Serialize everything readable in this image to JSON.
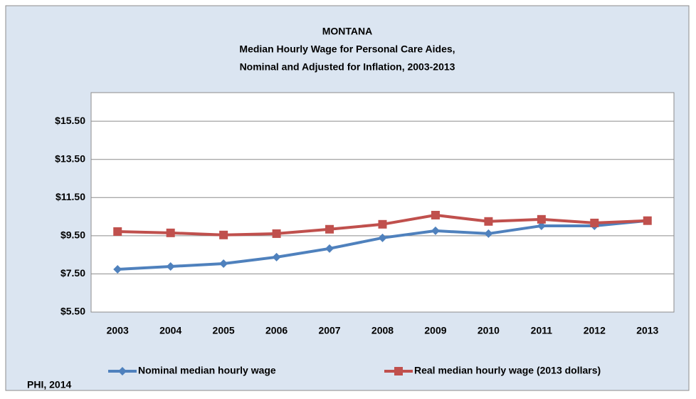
{
  "chart_data": {
    "type": "line",
    "title": [
      "MONTANA",
      "Median Hourly Wage for Personal Care Aides,",
      "Nominal and Adjusted for Inflation, 2003-2013"
    ],
    "source": "PHI, 2014",
    "categories": [
      "2003",
      "2004",
      "2005",
      "2006",
      "2007",
      "2008",
      "2009",
      "2010",
      "2011",
      "2012",
      "2013"
    ],
    "series": [
      {
        "name": "Nominal median hourly wage",
        "color": "#4f81bd",
        "marker": "diamond",
        "values": [
          7.74,
          7.89,
          8.04,
          8.38,
          8.83,
          9.39,
          9.76,
          9.61,
          10.02,
          10.02,
          10.29
        ]
      },
      {
        "name": "Real median hourly wage (2013 dollars)",
        "color": "#c0504d",
        "marker": "square",
        "values": [
          9.72,
          9.65,
          9.54,
          9.61,
          9.84,
          10.1,
          10.58,
          10.25,
          10.36,
          10.17,
          10.29
        ]
      }
    ],
    "ylim": [
      5.5,
      17
    ],
    "yticks": [
      {
        "value": 5.5,
        "label": "$5.50"
      },
      {
        "value": 7.5,
        "label": "$7.50"
      },
      {
        "value": 9.5,
        "label": "$9.50"
      },
      {
        "value": 11.5,
        "label": "$11.50"
      },
      {
        "value": 13.5,
        "label": "$13.50"
      },
      {
        "value": 15.5,
        "label": "$15.50"
      }
    ],
    "grid": true,
    "legend": "bottom"
  }
}
